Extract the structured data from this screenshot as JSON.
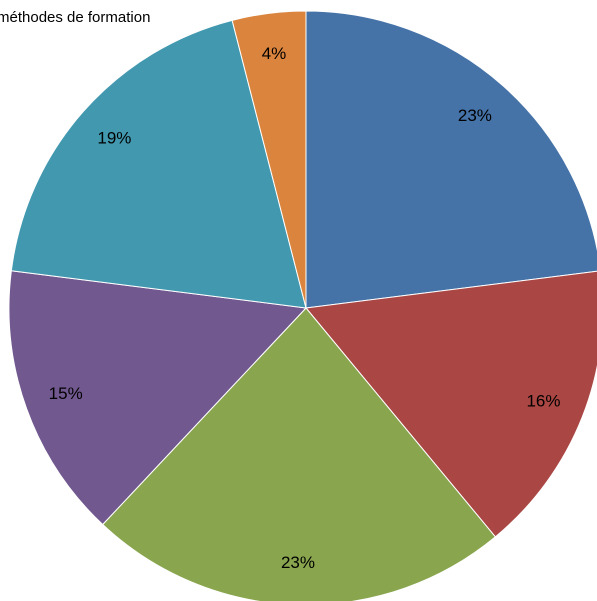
{
  "chart_data": {
    "type": "pie",
    "title": "méthodes de formation",
    "values": [
      23,
      16,
      23,
      15,
      19,
      4
    ],
    "value_labels": [
      "23%",
      "16%",
      "23%",
      "15%",
      "19%",
      "4%"
    ],
    "colors": [
      "#4572a7",
      "#aa4643",
      "#89a54e",
      "#71588f",
      "#4198af",
      "#db843d"
    ]
  }
}
